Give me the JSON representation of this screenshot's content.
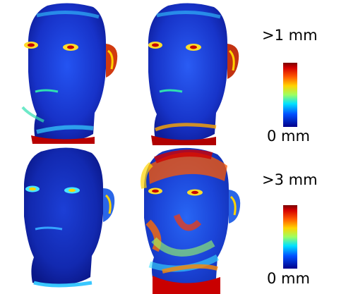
{
  "colorbars": [
    {
      "max_label": ">1 mm",
      "min_label": "0 mm"
    },
    {
      "max_label": ">3 mm",
      "min_label": "0 mm"
    }
  ],
  "colors": {
    "colormap": [
      "#00008a",
      "#0050ff",
      "#00e1ff",
      "#9cff62",
      "#ffd400",
      "#ff5a00",
      "#d40000",
      "#7a0000"
    ],
    "low": "#1a33d6",
    "high": "#b00000"
  }
}
